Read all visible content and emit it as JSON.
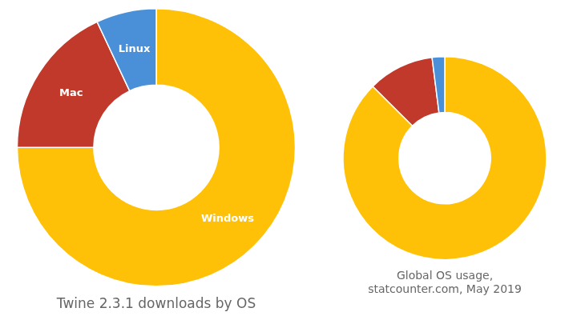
{
  "chart_data": [
    {
      "type": "doughnut",
      "title": "Twine 2.3.1 downloads by OS",
      "categories": [
        "Windows",
        "Mac",
        "Linux"
      ],
      "values": [
        75.0,
        18.0,
        7.0
      ],
      "colors": [
        "#FFC107",
        "#C0392B",
        "#4A90D9"
      ]
    },
    {
      "type": "doughnut",
      "title": "Global OS usage,\nstatcounter.com, May 2019",
      "values": [
        87.5,
        10.5,
        2.0
      ],
      "colors": [
        "#FFC107",
        "#C0392B",
        "#4A90D9"
      ]
    }
  ]
}
